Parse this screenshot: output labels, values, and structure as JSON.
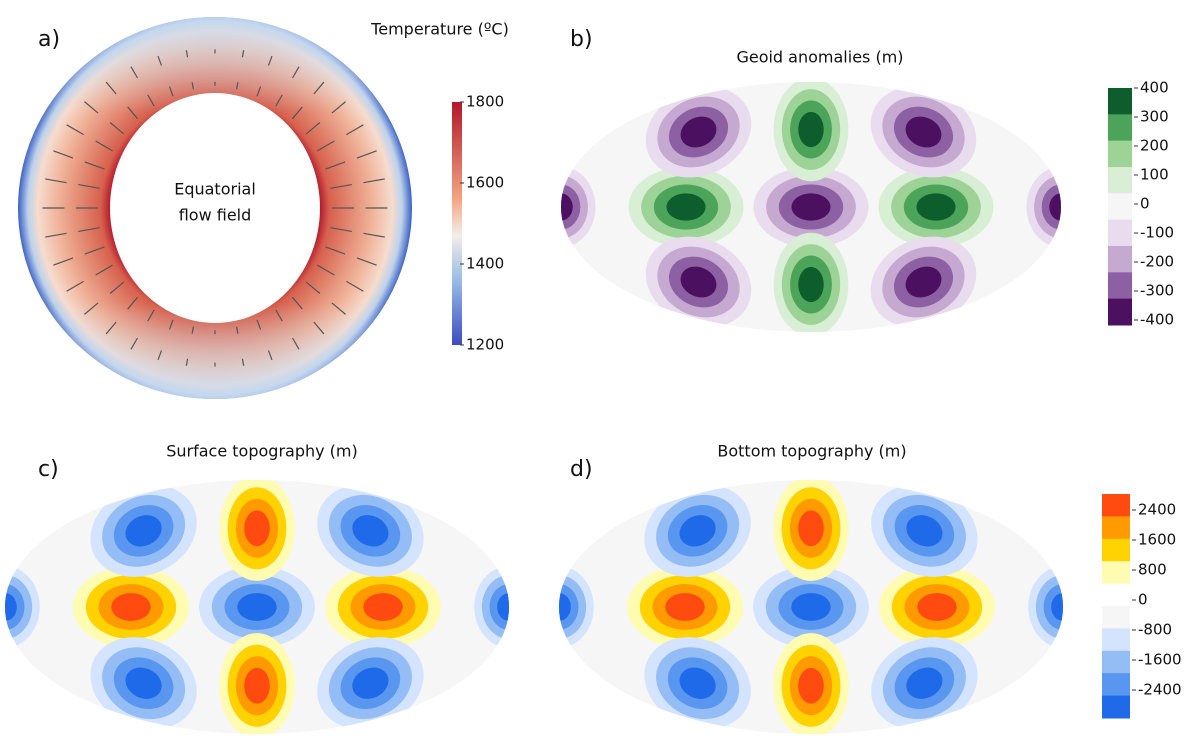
{
  "panels": [
    {
      "label": "a)",
      "title": "Temperature (ºC)",
      "annotation": [
        "Equatorial",
        "flow field"
      ]
    },
    {
      "label": "b)",
      "title": "Geoid anomalies (m)"
    },
    {
      "label": "c)",
      "title": "Surface topography (m)"
    },
    {
      "label": "d)",
      "title": "Bottom topography (m)"
    }
  ],
  "colorbars": [
    {
      "ticks": [
        1800,
        1600,
        1400,
        1200
      ]
    },
    {
      "ticks": [
        400,
        300,
        200,
        100,
        0,
        -100,
        -200,
        -300,
        -400
      ]
    },
    {
      "ticks": [
        2400,
        1600,
        800,
        0,
        -800,
        -1600,
        -2400
      ]
    }
  ]
}
